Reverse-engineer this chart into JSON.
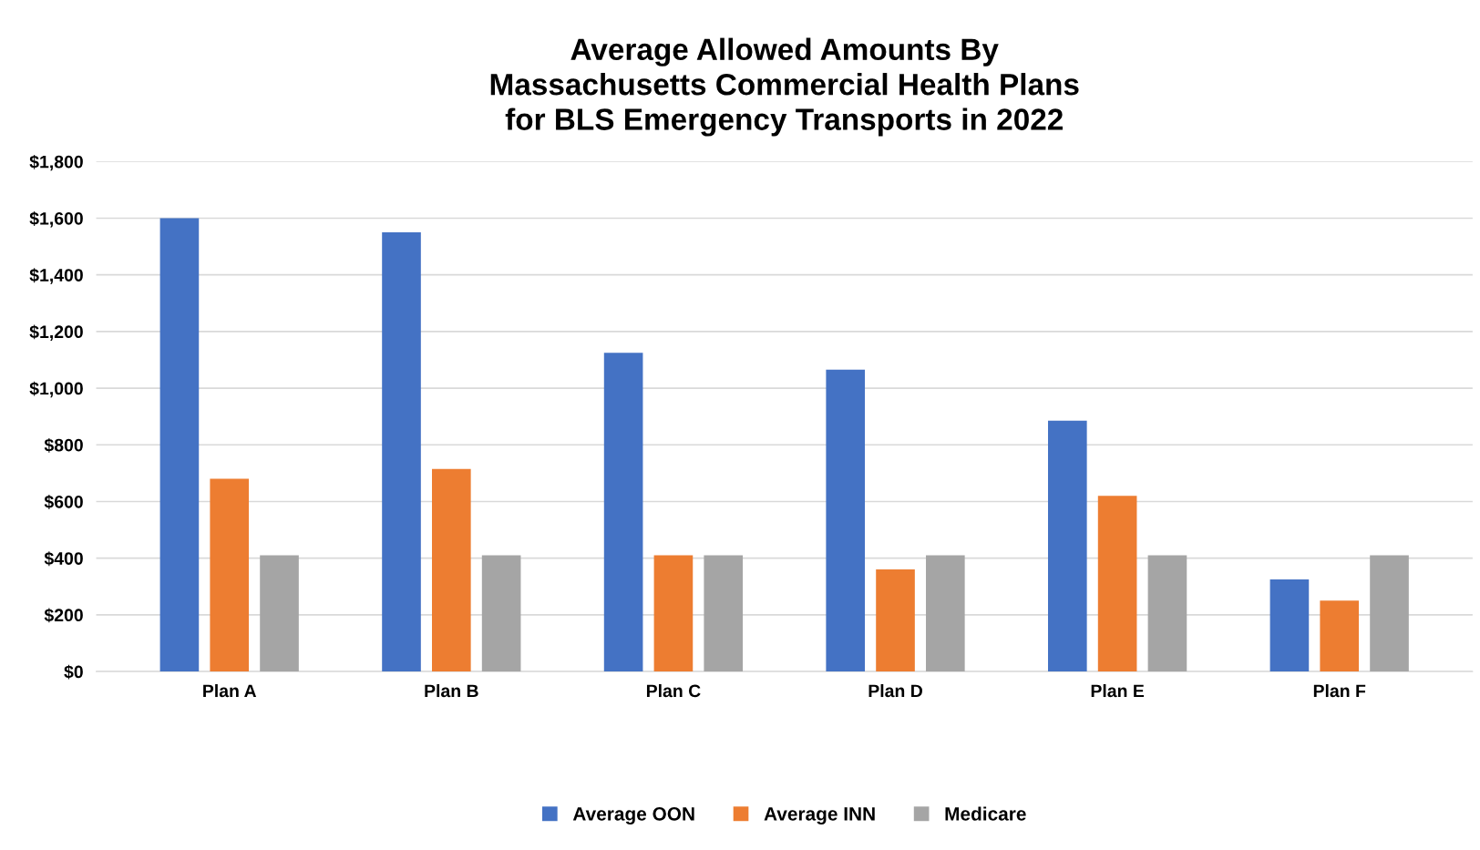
{
  "chart_data": {
    "type": "bar",
    "title": "Average Allowed Amounts By\nMassachusetts Commercial Health Plans\nfor BLS Emergency Transports in 2022",
    "categories": [
      "Plan A",
      "Plan B",
      "Plan C",
      "Plan D",
      "Plan E",
      "Plan F"
    ],
    "series": [
      {
        "name": "Average OON",
        "color": "#4472c4",
        "values": [
          1600,
          1550,
          1125,
          1065,
          885,
          325
        ]
      },
      {
        "name": "Average INN",
        "color": "#ed7d31",
        "values": [
          680,
          715,
          410,
          360,
          620,
          250
        ]
      },
      {
        "name": "Medicare",
        "color": "#a5a5a5",
        "values": [
          410,
          410,
          410,
          410,
          410,
          410
        ]
      }
    ],
    "ylim": [
      0,
      1800
    ],
    "yticks": [
      {
        "value": 0,
        "label": "$0"
      },
      {
        "value": 200,
        "label": "$200"
      },
      {
        "value": 400,
        "label": "$400"
      },
      {
        "value": 600,
        "label": "$600"
      },
      {
        "value": 800,
        "label": "$800"
      },
      {
        "value": 1000,
        "label": "$1,000"
      },
      {
        "value": 1200,
        "label": "$1,200"
      },
      {
        "value": 1400,
        "label": "$1,400"
      },
      {
        "value": 1600,
        "label": "$1,600"
      },
      {
        "value": 1800,
        "label": "$1,800"
      }
    ],
    "grid": "y",
    "legend": "bottom"
  }
}
